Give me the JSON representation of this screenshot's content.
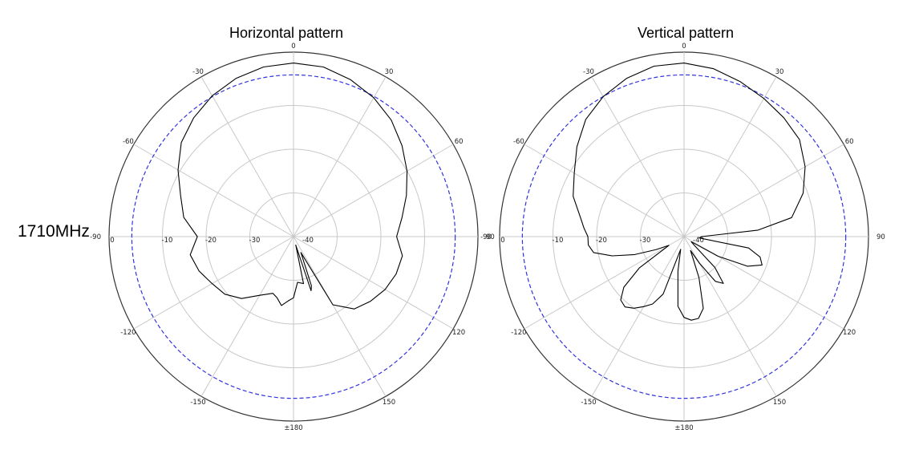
{
  "side_label": "1710MHz",
  "chart_data": [
    {
      "type": "polar-line",
      "title": "Horizontal pattern",
      "angle_labels": [
        "0",
        "30",
        "60",
        "90",
        "120",
        "150",
        "±180",
        "-150",
        "-120",
        "-90",
        "-60",
        "-30"
      ],
      "radial_labels": [
        "0",
        "-10",
        "-20",
        "-30",
        "-40"
      ],
      "rlim": [
        -40,
        0
      ],
      "reference_level_db": -3,
      "colors": {
        "trace": "#000000",
        "reference": "#3333dd",
        "grid": "#c8c8c8",
        "outer": "#333333"
      },
      "series": [
        {
          "angles_deg": [
            0,
            10,
            20,
            30,
            40,
            50,
            60,
            70,
            80,
            90,
            100,
            110,
            120,
            130,
            140,
            150,
            155,
            160,
            162,
            165,
            168,
            175,
            180,
            185,
            190,
            195,
            200,
            210,
            220,
            230,
            240,
            250,
            260,
            270,
            280,
            290,
            300,
            310,
            320,
            330,
            340,
            350
          ],
          "values_db": [
            -0.3,
            -0.6,
            -1.8,
            -3.3,
            -5.2,
            -7.6,
            -10,
            -12.5,
            -14.8,
            -16.4,
            -14.7,
            -15,
            -15.8,
            -17,
            -18.4,
            -22,
            -36,
            -28,
            -27,
            -38,
            -29,
            -29.5,
            -26,
            -25.2,
            -24,
            -25.5,
            -26.2,
            -24.5,
            -21.5,
            -19.5,
            -18.5,
            -17,
            -16,
            -18,
            -14.5,
            -12.5,
            -9.5,
            -6.5,
            -4.5,
            -2.8,
            -1.5,
            -0.6
          ]
        }
      ]
    },
    {
      "type": "polar-line",
      "title": "Vertical pattern",
      "angle_labels": [
        "0",
        "30",
        "60",
        "90",
        "120",
        "150",
        "±180",
        "-150",
        "-120",
        "-90",
        "-60",
        "-30"
      ],
      "radial_labels": [
        "0",
        "-10",
        "-20",
        "-30",
        "-40"
      ],
      "rlim": [
        -40,
        0
      ],
      "reference_level_db": -3,
      "colors": {
        "trace": "#000000",
        "reference": "#3333dd",
        "grid": "#c8c8c8",
        "outer": "#333333"
      },
      "series": [
        {
          "angles_deg": [
            0,
            10,
            20,
            30,
            40,
            50,
            60,
            70,
            80,
            85,
            90,
            95,
            100,
            105,
            110,
            115,
            120,
            125,
            130,
            135,
            140,
            145,
            150,
            155,
            160,
            165,
            170,
            175,
            180,
            185,
            190,
            195,
            200,
            205,
            210,
            215,
            220,
            225,
            230,
            235,
            240,
            245,
            250,
            255,
            260,
            265,
            270,
            275,
            280,
            290,
            300,
            310,
            320,
            330,
            340,
            350
          ],
          "values_db": [
            -0.3,
            -1,
            -2.3,
            -3.5,
            -4.5,
            -5.5,
            -8,
            -11,
            -15,
            -23,
            -36,
            -36.5,
            -25,
            -22,
            -21,
            -24,
            -31,
            -38,
            -37,
            -30,
            -26,
            -27.5,
            -33,
            -36.5,
            -30,
            -23,
            -21,
            -20.8,
            -21.5,
            -24,
            -32,
            -37,
            -26,
            -23,
            -21.5,
            -20,
            -19,
            -19.5,
            -22,
            -27.5,
            -36,
            -33,
            -28,
            -23,
            -19,
            -18,
            -18,
            -17,
            -16,
            -13,
            -11,
            -8,
            -5,
            -3,
            -1.5,
            -0.4
          ]
        }
      ]
    }
  ]
}
